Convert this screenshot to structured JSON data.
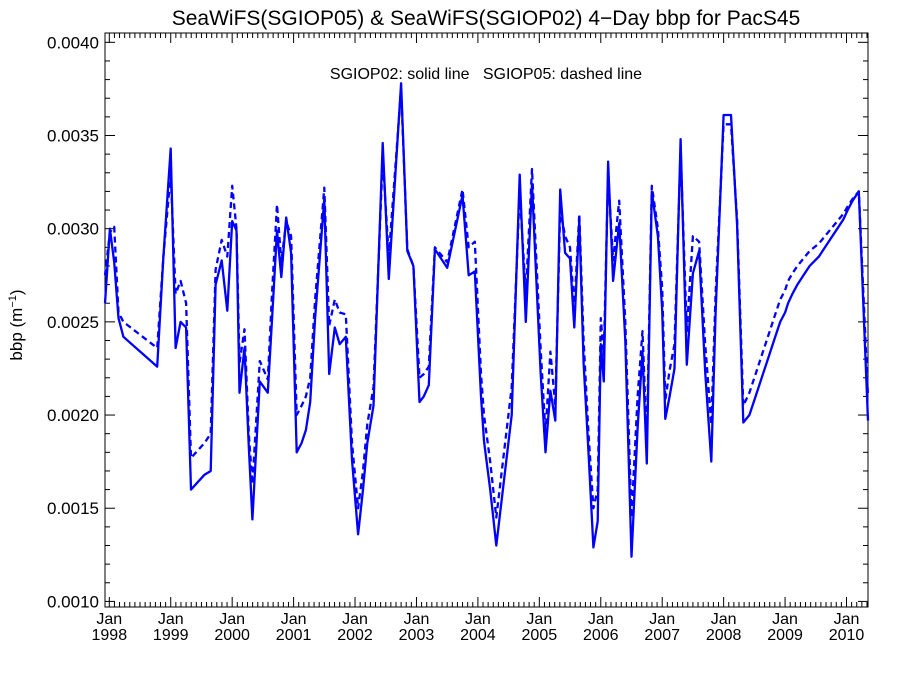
{
  "chart_data": {
    "type": "line",
    "title": "SeaWiFS(SGIOP05) & SeaWiFS(SGIOP02) 4−Day bbp for PacS45",
    "ylabel_base": "bbp (m",
    "ylabel_sup": "−1",
    "ylabel_close": ")",
    "annotation": "SGIOP02: solid line   SGIOP05: dashed line",
    "xlim": [
      1997.93,
      2010.35
    ],
    "ylim": [
      0.00097,
      0.00405
    ],
    "yticks": [
      0.001,
      0.0015,
      0.002,
      0.0025,
      0.003,
      0.0035,
      0.004
    ],
    "ytick_labels": [
      "0.0010",
      "0.0015",
      "0.0020",
      "0.0025",
      "0.0030",
      "0.0035",
      "0.0040"
    ],
    "xticks": [
      1998,
      1999,
      2000,
      2001,
      2002,
      2003,
      2004,
      2005,
      2006,
      2007,
      2008,
      2009,
      2010
    ],
    "xtick_month": "Jan",
    "xtick_years": [
      "1998",
      "1999",
      "2000",
      "2001",
      "2002",
      "2003",
      "2004",
      "2005",
      "2006",
      "2007",
      "2008",
      "2009",
      "2010"
    ],
    "series": [
      {
        "name": "SGIOP02",
        "style": "solid",
        "color": "#0000ff",
        "x": [
          1997.93,
          1998.01,
          1998.08,
          1998.15,
          1998.23,
          1998.78,
          1998.88,
          1999.0,
          1999.08,
          1999.16,
          1999.25,
          1999.33,
          1999.55,
          1999.65,
          1999.73,
          1999.83,
          1999.92,
          2000.0,
          2000.07,
          2000.12,
          2000.2,
          2000.27,
          2000.33,
          2000.45,
          2000.58,
          2000.65,
          2000.73,
          2000.8,
          2000.88,
          2000.96,
          2001.05,
          2001.13,
          2001.2,
          2001.27,
          2001.35,
          2001.5,
          2001.58,
          2001.67,
          2001.75,
          2001.85,
          2001.95,
          2002.05,
          2002.13,
          2002.2,
          2002.3,
          2002.45,
          2002.55,
          2002.75,
          2002.85,
          2002.95,
          2003.05,
          2003.12,
          2003.2,
          2003.3,
          2003.5,
          2003.75,
          2003.85,
          2003.95,
          2004.05,
          2004.1,
          2004.2,
          2004.3,
          2004.55,
          2004.68,
          2004.78,
          2004.88,
          2004.95,
          2005.02,
          2005.1,
          2005.18,
          2005.26,
          2005.34,
          2005.42,
          2005.5,
          2005.57,
          2005.65,
          2005.72,
          2005.8,
          2005.88,
          2005.95,
          2006.0,
          2006.05,
          2006.12,
          2006.2,
          2006.3,
          2006.4,
          2006.5,
          2006.6,
          2006.68,
          2006.75,
          2006.83,
          2006.93,
          2007.0,
          2007.05,
          2007.12,
          2007.2,
          2007.3,
          2007.4,
          2007.5,
          2007.6,
          2007.7,
          2007.8,
          2007.87,
          2008.0,
          2008.12,
          2008.22,
          2008.32,
          2008.42,
          2008.52,
          2008.62,
          2008.72,
          2008.82,
          2008.92,
          2009.0,
          2009.05,
          2009.12,
          2009.2,
          2009.3,
          2009.4,
          2009.55,
          2009.65,
          2009.75,
          2009.85,
          2009.95,
          2010.02,
          2010.1,
          2010.2,
          2010.35
        ],
        "y": [
          0.0026,
          0.003,
          0.00282,
          0.00252,
          0.00242,
          0.00226,
          0.00285,
          0.00343,
          0.00236,
          0.0025,
          0.00247,
          0.0016,
          0.00168,
          0.0017,
          0.0027,
          0.00283,
          0.00256,
          0.00304,
          0.00299,
          0.00212,
          0.00236,
          0.00183,
          0.00144,
          0.00218,
          0.00212,
          0.00252,
          0.00299,
          0.00274,
          0.00306,
          0.00287,
          0.0018,
          0.00185,
          0.00192,
          0.00207,
          0.00252,
          0.00316,
          0.00222,
          0.00247,
          0.00238,
          0.00242,
          0.00176,
          0.00136,
          0.0016,
          0.00185,
          0.00205,
          0.00346,
          0.00273,
          0.00378,
          0.00288,
          0.0028,
          0.00207,
          0.0021,
          0.00216,
          0.00289,
          0.00279,
          0.00318,
          0.00275,
          0.00277,
          0.0021,
          0.00186,
          0.0016,
          0.0013,
          0.002,
          0.00329,
          0.0025,
          0.00324,
          0.00273,
          0.00223,
          0.0018,
          0.00213,
          0.00197,
          0.00321,
          0.00287,
          0.00284,
          0.00247,
          0.00305,
          0.00228,
          0.0018,
          0.00129,
          0.00143,
          0.00238,
          0.00218,
          0.00336,
          0.00272,
          0.00303,
          0.0024,
          0.00124,
          0.00193,
          0.00234,
          0.00174,
          0.0032,
          0.00296,
          0.00256,
          0.00198,
          0.0021,
          0.00225,
          0.00348,
          0.00227,
          0.00276,
          0.00288,
          0.00223,
          0.00175,
          0.00255,
          0.00361,
          0.00361,
          0.00302,
          0.00196,
          0.002,
          0.0021,
          0.0022,
          0.0023,
          0.0024,
          0.0025,
          0.00255,
          0.0026,
          0.00265,
          0.0027,
          0.00275,
          0.0028,
          0.00285,
          0.0029,
          0.00295,
          0.003,
          0.00305,
          0.0031,
          0.00315,
          0.0032,
          0.00197
        ]
      },
      {
        "name": "SGIOP05",
        "style": "dashed",
        "color": "#0000ff",
        "x": [
          1997.93,
          1998.01,
          1998.08,
          1998.15,
          1998.23,
          1998.78,
          1998.88,
          1999.0,
          1999.08,
          1999.16,
          1999.25,
          1999.33,
          1999.55,
          1999.65,
          1999.73,
          1999.83,
          1999.92,
          2000.0,
          2000.07,
          2000.12,
          2000.2,
          2000.27,
          2000.33,
          2000.45,
          2000.58,
          2000.65,
          2000.73,
          2000.8,
          2000.88,
          2000.96,
          2001.05,
          2001.13,
          2001.2,
          2001.27,
          2001.35,
          2001.5,
          2001.58,
          2001.67,
          2001.75,
          2001.85,
          2001.95,
          2002.05,
          2002.13,
          2002.2,
          2002.3,
          2002.45,
          2002.55,
          2002.75,
          2002.85,
          2002.95,
          2003.05,
          2003.12,
          2003.2,
          2003.3,
          2003.5,
          2003.75,
          2003.85,
          2003.95,
          2004.05,
          2004.1,
          2004.2,
          2004.3,
          2004.55,
          2004.68,
          2004.78,
          2004.88,
          2004.95,
          2005.02,
          2005.1,
          2005.18,
          2005.26,
          2005.34,
          2005.42,
          2005.5,
          2005.57,
          2005.65,
          2005.72,
          2005.8,
          2005.88,
          2005.95,
          2006.0,
          2006.05,
          2006.12,
          2006.2,
          2006.3,
          2006.4,
          2006.5,
          2006.6,
          2006.68,
          2006.75,
          2006.83,
          2006.93,
          2007.0,
          2007.05,
          2007.12,
          2007.2,
          2007.3,
          2007.4,
          2007.5,
          2007.6,
          2007.7,
          2007.8,
          2007.87,
          2008.0,
          2008.12,
          2008.22,
          2008.32,
          2008.42,
          2008.52,
          2008.62,
          2008.72,
          2008.82,
          2008.92,
          2009.0,
          2009.05,
          2009.12,
          2009.2,
          2009.3,
          2009.4,
          2009.55,
          2009.65,
          2009.75,
          2009.85,
          2009.95,
          2010.02,
          2010.1,
          2010.2,
          2010.35
        ],
        "y": [
          0.00275,
          0.00298,
          0.00301,
          0.00255,
          0.0025,
          0.00236,
          0.00285,
          0.0033,
          0.00265,
          0.00272,
          0.0026,
          0.00177,
          0.00185,
          0.0019,
          0.00278,
          0.00294,
          0.00285,
          0.00323,
          0.003,
          0.00228,
          0.00246,
          0.0019,
          0.00163,
          0.00229,
          0.00219,
          0.00266,
          0.00313,
          0.00282,
          0.00304,
          0.00296,
          0.002,
          0.00205,
          0.0021,
          0.0022,
          0.00262,
          0.00322,
          0.00248,
          0.00262,
          0.00255,
          0.00254,
          0.00185,
          0.0015,
          0.0017,
          0.00195,
          0.00215,
          0.00338,
          0.00285,
          0.00375,
          0.00289,
          0.0028,
          0.0022,
          0.00222,
          0.00226,
          0.0029,
          0.00282,
          0.00321,
          0.0029,
          0.00293,
          0.00222,
          0.002,
          0.00175,
          0.00145,
          0.00215,
          0.0032,
          0.00265,
          0.00332,
          0.00284,
          0.00236,
          0.0019,
          0.00234,
          0.00205,
          0.0031,
          0.00296,
          0.0029,
          0.00257,
          0.00308,
          0.0024,
          0.0019,
          0.0015,
          0.0016,
          0.00252,
          0.00232,
          0.0033,
          0.00283,
          0.00315,
          0.0025,
          0.00145,
          0.0021,
          0.00245,
          0.00185,
          0.00323,
          0.003,
          0.00268,
          0.00208,
          0.00224,
          0.00238,
          0.00342,
          0.00245,
          0.00296,
          0.00293,
          0.00238,
          0.00195,
          0.00265,
          0.00356,
          0.00356,
          0.00305,
          0.00205,
          0.00212,
          0.00222,
          0.00232,
          0.00242,
          0.00252,
          0.00262,
          0.00267,
          0.00272,
          0.00276,
          0.0028,
          0.00284,
          0.00288,
          0.00292,
          0.00296,
          0.003,
          0.00304,
          0.00308,
          0.00312,
          0.00316,
          0.0032,
          0.0021
        ]
      }
    ]
  }
}
